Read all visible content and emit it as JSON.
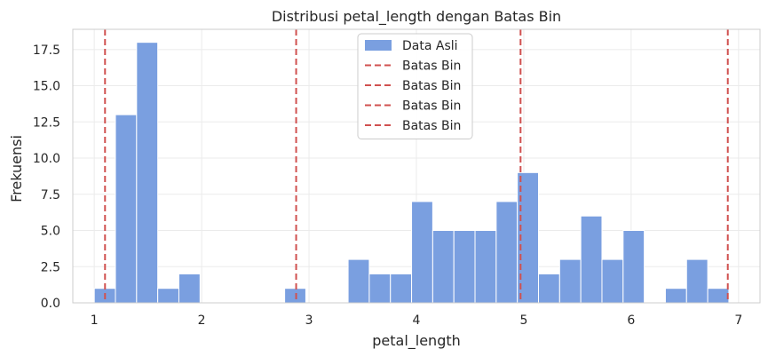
{
  "chart_data": {
    "type": "bar",
    "title": "Distribusi petal_length dengan Batas Bin",
    "xlabel": "petal_length",
    "ylabel": "Frekuensi",
    "xlim": [
      0.8,
      7.2
    ],
    "ylim": [
      0,
      18.9
    ],
    "xticks": [
      1,
      2,
      3,
      4,
      5,
      6,
      7
    ],
    "xtick_labels": [
      "1",
      "2",
      "3",
      "4",
      "5",
      "6",
      "7"
    ],
    "yticks": [
      0,
      2.5,
      5,
      7.5,
      10,
      12.5,
      15,
      17.5
    ],
    "ytick_labels": [
      "0.0",
      "2.5",
      "5.0",
      "7.5",
      "10.0",
      "12.5",
      "15.0",
      "17.5"
    ],
    "grid": true,
    "legend_position": "top-center",
    "bin_start": 1.0,
    "bin_width": 0.197,
    "counts": [
      1,
      13,
      18,
      1,
      2,
      0,
      0,
      0,
      0,
      1,
      0,
      0,
      3,
      2,
      2,
      7,
      5,
      5,
      5,
      7,
      9,
      2,
      3,
      6,
      3,
      5,
      0,
      1,
      3,
      1
    ],
    "bin_edges_lines": [
      1.1,
      2.88,
      4.97,
      6.9
    ],
    "series": [
      {
        "name": "Data Asli",
        "kind": "histogram",
        "color": "#7a9fe0"
      },
      {
        "name": "Batas Bin",
        "kind": "vline",
        "color": "#d0504f"
      },
      {
        "name": "Batas Bin",
        "kind": "vline",
        "color": "#d0504f"
      },
      {
        "name": "Batas Bin",
        "kind": "vline",
        "color": "#d0504f"
      },
      {
        "name": "Batas Bin",
        "kind": "vline",
        "color": "#d0504f"
      }
    ],
    "colors": {
      "bar": "#7a9fe0",
      "bar_edge": "#ffffff",
      "line": "#d0504f",
      "grid": "#ebebeb",
      "frame": "#cccccc"
    }
  }
}
